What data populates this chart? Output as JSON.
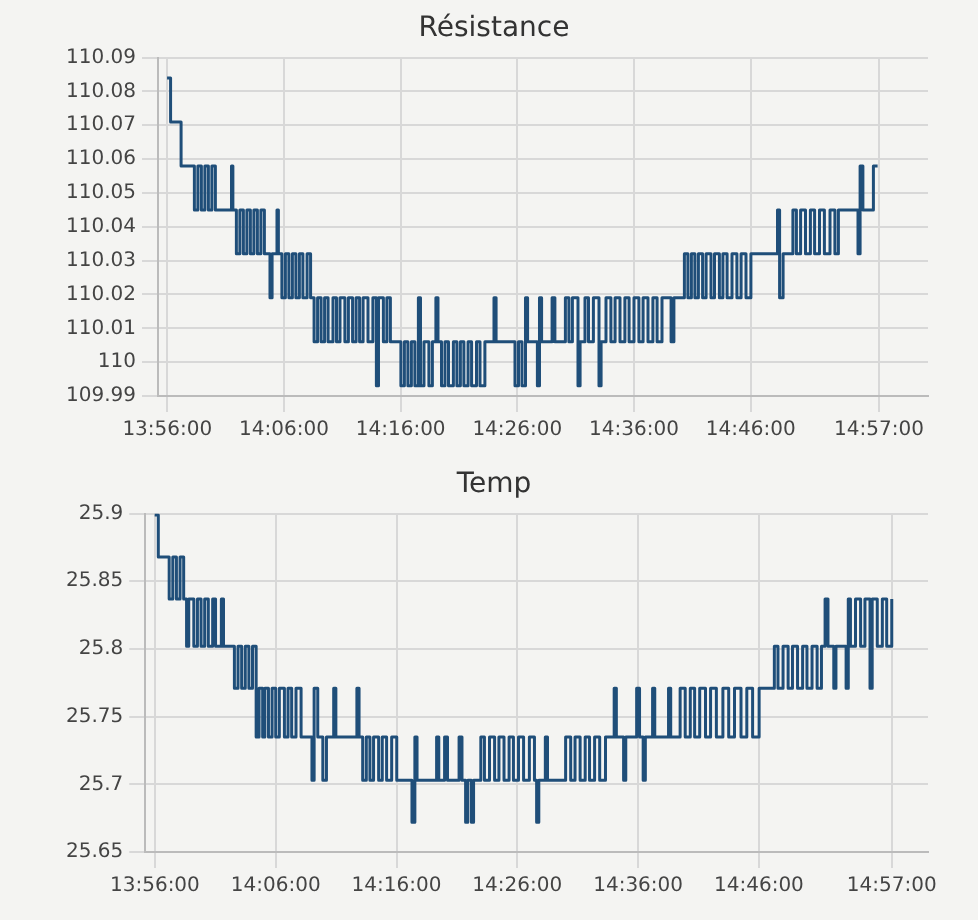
{
  "chart_data": [
    {
      "type": "step",
      "title": "Résistance",
      "color": "#1f4e79",
      "grid": true,
      "legend": false,
      "xlim": [
        13.92,
        15.02
      ],
      "xticks": [
        {
          "value": 13.9333,
          "label": "13:56:00"
        },
        {
          "value": 14.1,
          "label": "14:06:00"
        },
        {
          "value": 14.2667,
          "label": "14:16:00"
        },
        {
          "value": 14.4333,
          "label": "14:26:00"
        },
        {
          "value": 14.6,
          "label": "14:36:00"
        },
        {
          "value": 14.7667,
          "label": "14:46:00"
        },
        {
          "value": 14.95,
          "label": "14:57:00"
        }
      ],
      "ylim": [
        109.99,
        110.09
      ],
      "yticks": [
        109.99,
        110,
        110.01,
        110.02,
        110.03,
        110.04,
        110.05,
        110.06,
        110.07,
        110.08,
        110.09
      ],
      "x": [
        13.933,
        13.938,
        13.953,
        13.972,
        13.977,
        13.982,
        13.987,
        13.992,
        13.997,
        14.002,
        14.025,
        14.027,
        14.032,
        14.037,
        14.042,
        14.047,
        14.052,
        14.057,
        14.062,
        14.067,
        14.072,
        14.08,
        14.083,
        14.09,
        14.092,
        14.097,
        14.102,
        14.107,
        14.112,
        14.117,
        14.122,
        14.127,
        14.133,
        14.138,
        14.143,
        14.148,
        14.153,
        14.158,
        14.163,
        14.17,
        14.175,
        14.18,
        14.187,
        14.192,
        14.198,
        14.203,
        14.208,
        14.213,
        14.22,
        14.227,
        14.232,
        14.235,
        14.242,
        14.247,
        14.252,
        14.267,
        14.272,
        14.277,
        14.282,
        14.287,
        14.292,
        14.295,
        14.3,
        14.307,
        14.312,
        14.317,
        14.32,
        14.325,
        14.33,
        14.335,
        14.342,
        14.347,
        14.352,
        14.357,
        14.363,
        14.368,
        14.375,
        14.38,
        14.387,
        14.4,
        14.403,
        14.43,
        14.435,
        14.44,
        14.445,
        14.448,
        14.462,
        14.465,
        14.468,
        14.483,
        14.487,
        14.502,
        14.507,
        14.512,
        14.52,
        14.523,
        14.53,
        14.535,
        14.542,
        14.55,
        14.553,
        14.56,
        14.567,
        14.573,
        14.58,
        14.587,
        14.593,
        14.6,
        14.607,
        14.613,
        14.62,
        14.627,
        14.633,
        14.64,
        14.653,
        14.657,
        14.672,
        14.677,
        14.682,
        14.687,
        14.692,
        14.698,
        14.703,
        14.71,
        14.715,
        14.722,
        14.727,
        14.733,
        14.74,
        14.747,
        14.753,
        14.76,
        14.767,
        14.805,
        14.808,
        14.813,
        14.827,
        14.832,
        14.838,
        14.845,
        14.852,
        14.858,
        14.865,
        14.872,
        14.88,
        14.887,
        14.892,
        14.92,
        14.923,
        14.927,
        14.942,
        14.948
      ],
      "values": [
        110.084,
        110.071,
        110.058,
        110.045,
        110.058,
        110.045,
        110.058,
        110.045,
        110.058,
        110.045,
        110.058,
        110.045,
        110.032,
        110.045,
        110.032,
        110.045,
        110.032,
        110.045,
        110.032,
        110.045,
        110.032,
        110.019,
        110.032,
        110.045,
        110.032,
        110.019,
        110.032,
        110.019,
        110.032,
        110.019,
        110.032,
        110.019,
        110.032,
        110.019,
        110.006,
        110.019,
        110.006,
        110.019,
        110.006,
        110.019,
        110.006,
        110.019,
        110.006,
        110.019,
        110.006,
        110.019,
        110.006,
        110.019,
        110.006,
        110.019,
        109.993,
        110.019,
        110.006,
        110.019,
        110.006,
        109.993,
        110.006,
        109.993,
        110.006,
        109.993,
        110.019,
        109.993,
        110.006,
        109.993,
        110.006,
        110.019,
        110.006,
        109.993,
        110.006,
        109.993,
        110.006,
        109.993,
        110.006,
        109.993,
        110.006,
        109.993,
        110.006,
        109.993,
        110.006,
        110.019,
        110.006,
        109.993,
        110.006,
        109.993,
        110.019,
        110.006,
        109.993,
        110.019,
        110.006,
        110.019,
        110.006,
        110.019,
        110.006,
        110.019,
        109.993,
        110.006,
        110.019,
        110.006,
        110.019,
        109.993,
        110.006,
        110.019,
        110.006,
        110.019,
        110.006,
        110.019,
        110.006,
        110.019,
        110.006,
        110.019,
        110.006,
        110.019,
        110.006,
        110.019,
        110.006,
        110.019,
        110.032,
        110.019,
        110.032,
        110.019,
        110.032,
        110.019,
        110.032,
        110.019,
        110.032,
        110.019,
        110.032,
        110.019,
        110.032,
        110.019,
        110.032,
        110.019,
        110.032,
        110.045,
        110.019,
        110.032,
        110.045,
        110.032,
        110.045,
        110.032,
        110.045,
        110.032,
        110.045,
        110.032,
        110.045,
        110.032,
        110.045,
        110.032,
        110.058,
        110.045,
        110.058,
        110.058
      ]
    },
    {
      "type": "step",
      "title": "Temp",
      "color": "#1f4e79",
      "grid": true,
      "legend": false,
      "xlim": [
        13.92,
        15.0
      ],
      "xticks": [
        {
          "value": 13.9333,
          "label": "13:56:00"
        },
        {
          "value": 14.1,
          "label": "14:06:00"
        },
        {
          "value": 14.2667,
          "label": "14:16:00"
        },
        {
          "value": 14.4333,
          "label": "14:26:00"
        },
        {
          "value": 14.6,
          "label": "14:36:00"
        },
        {
          "value": 14.7667,
          "label": "14:46:00"
        },
        {
          "value": 14.95,
          "label": "14:57:00"
        }
      ],
      "ylim": [
        25.65,
        25.9
      ],
      "yticks": [
        25.65,
        25.7,
        25.75,
        25.8,
        25.85,
        25.9
      ],
      "x": [
        13.933,
        13.938,
        13.953,
        13.958,
        13.963,
        13.968,
        13.973,
        13.977,
        13.98,
        13.987,
        13.992,
        13.997,
        14.002,
        14.007,
        14.013,
        14.017,
        14.025,
        14.028,
        14.043,
        14.048,
        14.053,
        14.058,
        14.063,
        14.068,
        14.073,
        14.077,
        14.082,
        14.085,
        14.09,
        14.095,
        14.1,
        14.105,
        14.112,
        14.117,
        14.122,
        14.128,
        14.135,
        14.15,
        14.153,
        14.158,
        14.165,
        14.17,
        14.18,
        14.183,
        14.212,
        14.215,
        14.22,
        14.225,
        14.23,
        14.235,
        14.242,
        14.247,
        14.253,
        14.26,
        14.267,
        14.288,
        14.292,
        14.295,
        14.322,
        14.325,
        14.333,
        14.337,
        14.353,
        14.357,
        14.362,
        14.365,
        14.37,
        14.373,
        14.383,
        14.388,
        14.395,
        14.402,
        14.408,
        14.415,
        14.422,
        14.428,
        14.435,
        14.442,
        14.45,
        14.457,
        14.46,
        14.463,
        14.472,
        14.475,
        14.5,
        14.507,
        14.513,
        14.52,
        14.527,
        14.533,
        14.54,
        14.547,
        14.555,
        14.567,
        14.57,
        14.58,
        14.583,
        14.598,
        14.602,
        14.607,
        14.61,
        14.62,
        14.623,
        14.642,
        14.645,
        14.658,
        14.665,
        14.672,
        14.678,
        14.685,
        14.693,
        14.7,
        14.708,
        14.717,
        14.725,
        14.733,
        14.742,
        14.75,
        14.758,
        14.767,
        14.788,
        14.793,
        14.8,
        14.807,
        14.813,
        14.82,
        14.827,
        14.833,
        14.84,
        14.847,
        14.853,
        14.858,
        14.862,
        14.87,
        14.873,
        14.887,
        14.89,
        14.893,
        14.9,
        14.907,
        14.913,
        14.92,
        14.923,
        14.93,
        14.937,
        14.943,
        14.95
      ],
      "values": [
        25.899,
        25.868,
        25.837,
        25.868,
        25.837,
        25.868,
        25.837,
        25.802,
        25.837,
        25.802,
        25.837,
        25.802,
        25.837,
        25.802,
        25.837,
        25.802,
        25.837,
        25.802,
        25.771,
        25.802,
        25.771,
        25.802,
        25.771,
        25.802,
        25.735,
        25.771,
        25.735,
        25.771,
        25.735,
        25.771,
        25.735,
        25.771,
        25.735,
        25.771,
        25.735,
        25.771,
        25.735,
        25.703,
        25.771,
        25.735,
        25.703,
        25.735,
        25.771,
        25.735,
        25.771,
        25.735,
        25.703,
        25.735,
        25.703,
        25.735,
        25.703,
        25.735,
        25.703,
        25.735,
        25.703,
        25.672,
        25.735,
        25.703,
        25.735,
        25.703,
        25.735,
        25.703,
        25.735,
        25.703,
        25.672,
        25.703,
        25.672,
        25.703,
        25.735,
        25.703,
        25.735,
        25.703,
        25.735,
        25.703,
        25.735,
        25.703,
        25.735,
        25.703,
        25.735,
        25.703,
        25.672,
        25.703,
        25.735,
        25.703,
        25.735,
        25.703,
        25.735,
        25.703,
        25.735,
        25.703,
        25.735,
        25.703,
        25.735,
        25.771,
        25.735,
        25.703,
        25.735,
        25.771,
        25.735,
        25.703,
        25.735,
        25.771,
        25.735,
        25.771,
        25.735,
        25.771,
        25.735,
        25.771,
        25.735,
        25.771,
        25.735,
        25.771,
        25.735,
        25.771,
        25.735,
        25.771,
        25.735,
        25.771,
        25.735,
        25.771,
        25.802,
        25.771,
        25.802,
        25.771,
        25.802,
        25.771,
        25.802,
        25.771,
        25.802,
        25.771,
        25.802,
        25.837,
        25.802,
        25.771,
        25.802,
        25.771,
        25.837,
        25.802,
        25.837,
        25.802,
        25.837,
        25.771,
        25.837,
        25.802,
        25.837,
        25.802,
        25.837
      ]
    }
  ]
}
